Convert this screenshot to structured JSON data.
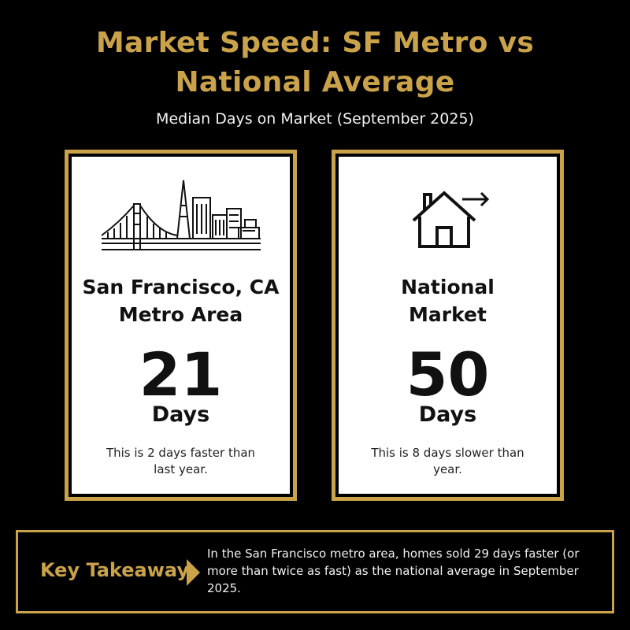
{
  "header": {
    "title_line1": "Market Speed: SF Metro vs",
    "title_line2": "National Average",
    "subtitle": "Median Days on Market (September 2025)"
  },
  "cards": [
    {
      "icon": "golden-gate-skyline-icon",
      "title_line1": "San Francisco, CA",
      "title_line2": "Metro Area",
      "value": "21",
      "unit": "Days",
      "note": "This is 2 days faster than last year."
    },
    {
      "icon": "house-arrow-icon",
      "title_line1": "National",
      "title_line2": "Market",
      "value": "50",
      "unit": "Days",
      "note": "This is 8 days slower than year."
    }
  ],
  "takeaway": {
    "label": "Key Takeaway",
    "text": "In the San Francisco metro area, homes sold 29 days faster (or more than twice as fast) as the national average in September 2025."
  },
  "colors": {
    "gold": "#c9a24a",
    "background": "#000000",
    "card": "#ffffff"
  }
}
